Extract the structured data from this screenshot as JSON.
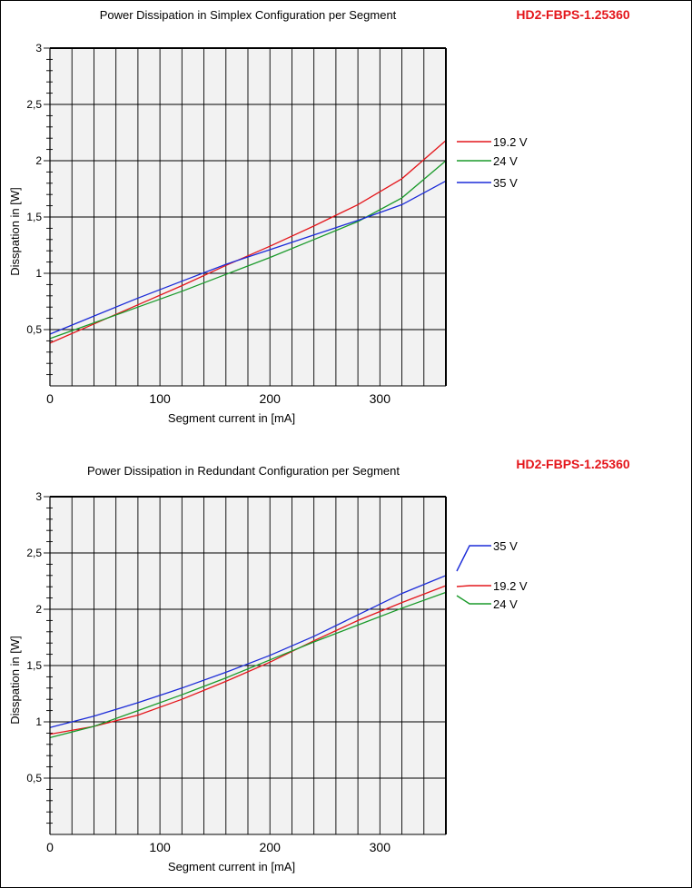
{
  "colors": {
    "red": "#e4161b",
    "green": "#1a9a2a",
    "blue": "#1b2bd8",
    "plot_bg": "#f2f2f2",
    "code": "#e4161b"
  },
  "chart_data": [
    {
      "type": "line",
      "title": "Power Dissipation in Simplex Configuration per Segment",
      "product_code": "HD2-FBPS-1.25360",
      "xlabel": "Segment current in [mA]",
      "ylabel": "Disspation in [W]",
      "xlim": [
        0,
        360
      ],
      "ylim": [
        0,
        3
      ],
      "x_ticks": [
        "0",
        "100",
        "200",
        "300"
      ],
      "y_ticks": [
        "0,5",
        "1",
        "1,5",
        "2",
        "2,5",
        "3"
      ],
      "grid": true,
      "legend_position": "right",
      "x": [
        0,
        40,
        80,
        120,
        160,
        200,
        240,
        280,
        320,
        360
      ],
      "series": [
        {
          "name": "19.2 V",
          "color": "#e4161b",
          "values": [
            0.38,
            0.55,
            0.72,
            0.89,
            1.07,
            1.24,
            1.42,
            1.61,
            1.84,
            2.18
          ]
        },
        {
          "name": "24 V",
          "color": "#1a9a2a",
          "values": [
            0.42,
            0.56,
            0.7,
            0.84,
            0.99,
            1.14,
            1.3,
            1.46,
            1.67,
            2.0
          ]
        },
        {
          "name": "35 V",
          "color": "#1b2bd8",
          "values": [
            0.46,
            0.62,
            0.78,
            0.93,
            1.08,
            1.21,
            1.34,
            1.47,
            1.61,
            1.82
          ]
        }
      ],
      "legend_order": [
        "19.2 V",
        "24 V",
        "35 V"
      ]
    },
    {
      "type": "line",
      "title": "Power Dissipation in Redundant Configuration per Segment",
      "product_code": "HD2-FBPS-1.25360",
      "xlabel": "Segment current in [mA]",
      "ylabel": "Disspation in [W]",
      "xlim": [
        0,
        360
      ],
      "ylim": [
        0,
        3
      ],
      "x_ticks": [
        "0",
        "100",
        "200",
        "300"
      ],
      "y_ticks": [
        "0,5",
        "1",
        "1,5",
        "2",
        "2,5",
        "3"
      ],
      "grid": true,
      "legend_position": "right",
      "x": [
        0,
        40,
        80,
        120,
        160,
        200,
        240,
        280,
        320,
        360
      ],
      "series": [
        {
          "name": "35 V",
          "color": "#1b2bd8",
          "values": [
            0.95,
            1.05,
            1.17,
            1.3,
            1.44,
            1.59,
            1.76,
            1.95,
            2.14,
            2.3
          ]
        },
        {
          "name": "19.2 V",
          "color": "#e4161b",
          "values": [
            0.89,
            0.96,
            1.06,
            1.2,
            1.36,
            1.53,
            1.72,
            1.9,
            2.06,
            2.21
          ]
        },
        {
          "name": "24 V",
          "color": "#1a9a2a",
          "values": [
            0.86,
            0.96,
            1.1,
            1.24,
            1.39,
            1.55,
            1.71,
            1.86,
            2.01,
            2.15
          ]
        }
      ],
      "legend_order": [
        "35 V",
        "19.2 V",
        "24 V"
      ]
    }
  ]
}
